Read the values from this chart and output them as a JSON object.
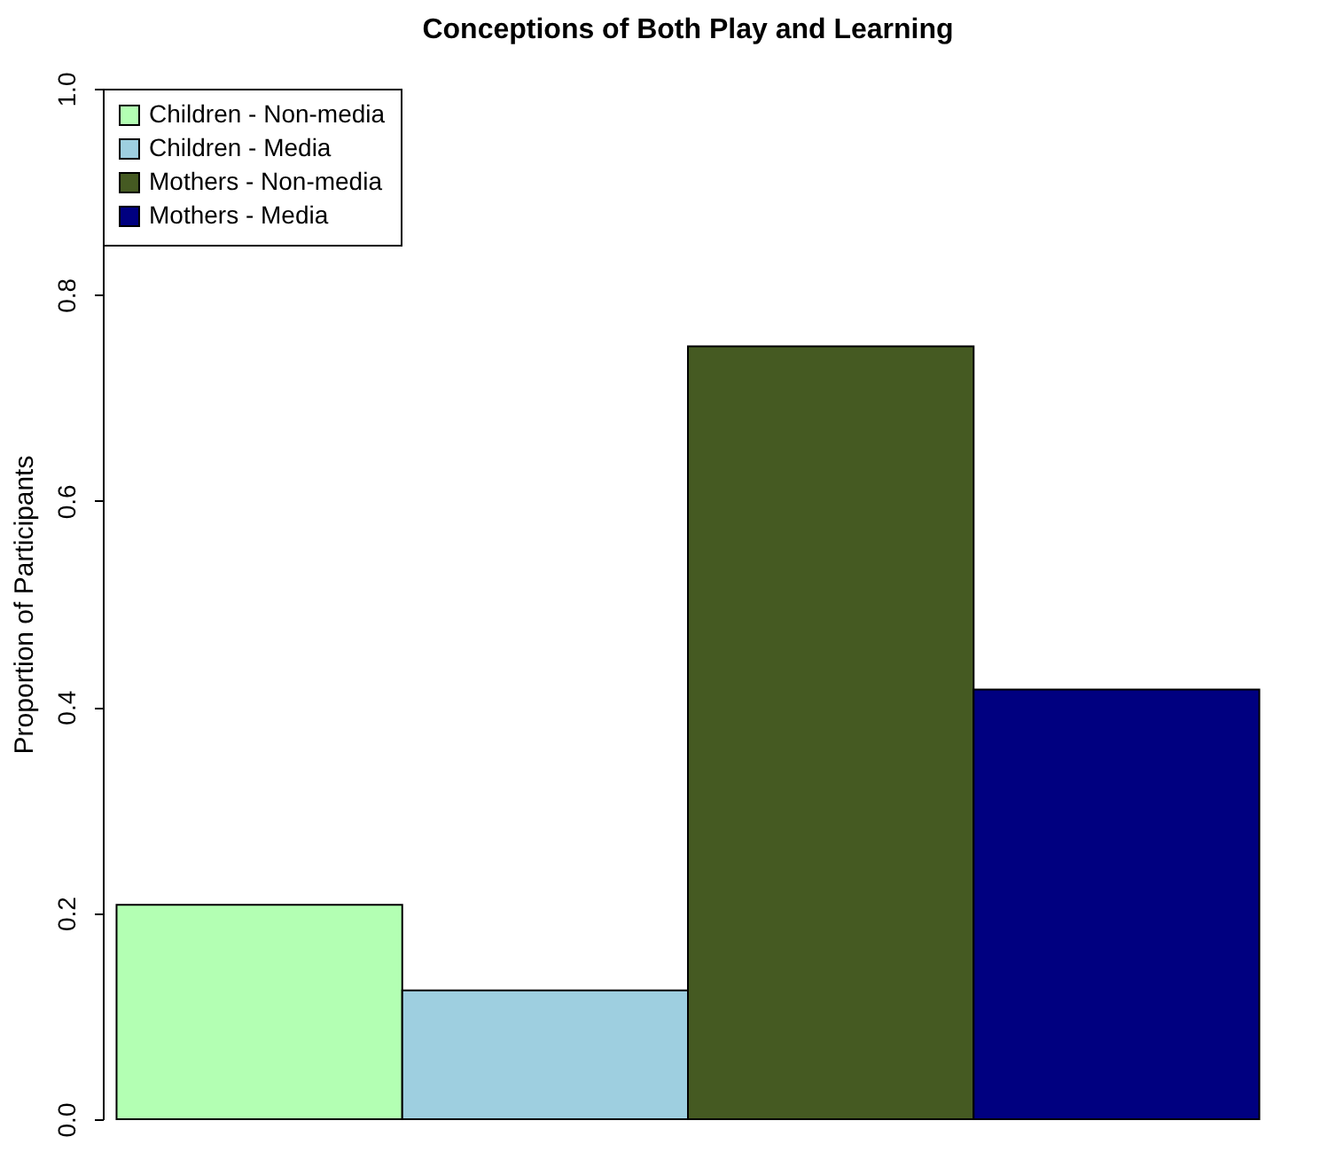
{
  "chart_data": {
    "type": "bar",
    "title": "Conceptions of Both Play and Learning",
    "ylabel": "Proportion of Participants",
    "categories": [
      null
    ],
    "series": [
      {
        "name": "Children - Non-media",
        "color": "#b3ffb3",
        "values": [
          0.208
        ]
      },
      {
        "name": "Children - Media",
        "color": "#9ecfe0",
        "values": [
          0.125
        ]
      },
      {
        "name": "Mothers - Non-media",
        "color": "#455a22",
        "values": [
          0.75
        ]
      },
      {
        "name": "Mothers - Media",
        "color": "#000080",
        "values": [
          0.417
        ]
      }
    ],
    "ylim": [
      0,
      1
    ],
    "yticks": [
      {
        "value": 0,
        "label": "0.0"
      },
      {
        "value": 0.2,
        "label": "0.2"
      },
      {
        "value": 0.4,
        "label": "0.4"
      },
      {
        "value": 0.6,
        "label": "0.6"
      },
      {
        "value": 0.8,
        "label": "0.8"
      },
      {
        "value": 1,
        "label": "1.0"
      }
    ],
    "legend": "top left"
  }
}
